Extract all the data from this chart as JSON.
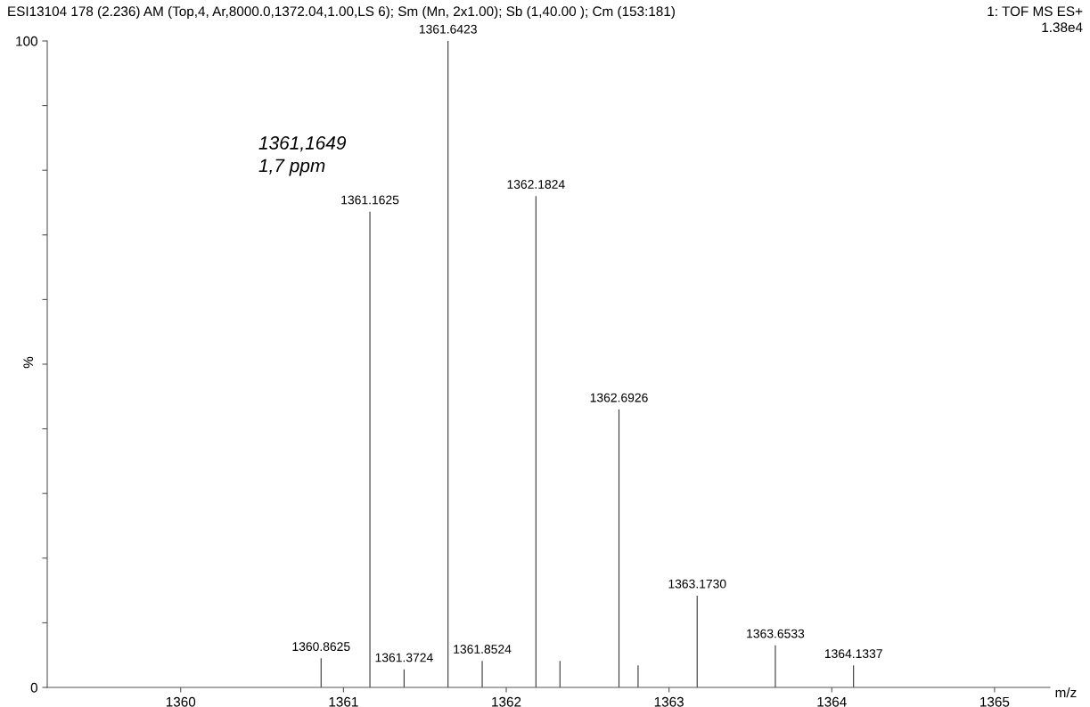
{
  "chart_data": {
    "type": "bar",
    "title": "ESI13104 178 (2.236) AM (Top,4, Ar,8000.0,1372.04,1.00,LS 6); Sm (Mn, 2x1.00); Sb (1,40.00 ); Cm (153:181)",
    "xlabel": "m/z",
    "ylabel": "%",
    "annotations": [
      "1361,1649\n1,7 ppm",
      "1: TOF MS ES+",
      "1.38e4",
      {
        "text": "1360.8625",
        "x": 1360.8625,
        "y": 4.5
      },
      {
        "text": "1361.1625",
        "x": 1361.1625,
        "y": 73.6
      },
      {
        "text": "1361.3724",
        "x": 1361.3724,
        "y": 2.8
      },
      {
        "text": "1361.6423",
        "x": 1361.6423,
        "y": 100
      },
      {
        "text": "1361.8524",
        "x": 1361.8524,
        "y": 4.1
      },
      {
        "text": "1362.1824",
        "x": 1362.1824,
        "y": 76.0
      },
      {
        "text": "1362.6926",
        "x": 1362.6926,
        "y": 43.0
      },
      {
        "text": "1363.1730",
        "x": 1363.173,
        "y": 14.2
      },
      {
        "text": "1363.6533",
        "x": 1363.6533,
        "y": 6.5
      },
      {
        "text": "1364.1337",
        "x": 1364.1337,
        "y": 3.4
      }
    ],
    "x": [
      1360.8625,
      1361.1625,
      1361.3724,
      1361.6423,
      1361.8524,
      1362.1824,
      1362.33,
      1362.6926,
      1362.81,
      1363.173,
      1363.6533,
      1364.1337
    ],
    "values": [
      4.5,
      73.6,
      2.8,
      100,
      4.1,
      76.0,
      4.1,
      43.0,
      3.4,
      14.2,
      6.5,
      3.4
    ],
    "color": "#333333",
    "xlim": [
      1359.18,
      1365.34
    ],
    "xticks": [
      1360,
      1361,
      1362,
      1363,
      1364,
      1365
    ],
    "ylim": [
      0,
      100
    ],
    "yticks": [
      0,
      {
        "value": 10,
        "label": null
      },
      {
        "value": 20,
        "label": null
      },
      {
        "value": 30,
        "label": null
      },
      {
        "value": 40,
        "label": null
      },
      {
        "value": 50,
        "label": null
      },
      {
        "value": 60,
        "label": null
      },
      {
        "value": 70,
        "label": null
      },
      {
        "value": 80,
        "label": null
      },
      {
        "value": 90,
        "label": null
      },
      100
    ],
    "grid": false
  }
}
